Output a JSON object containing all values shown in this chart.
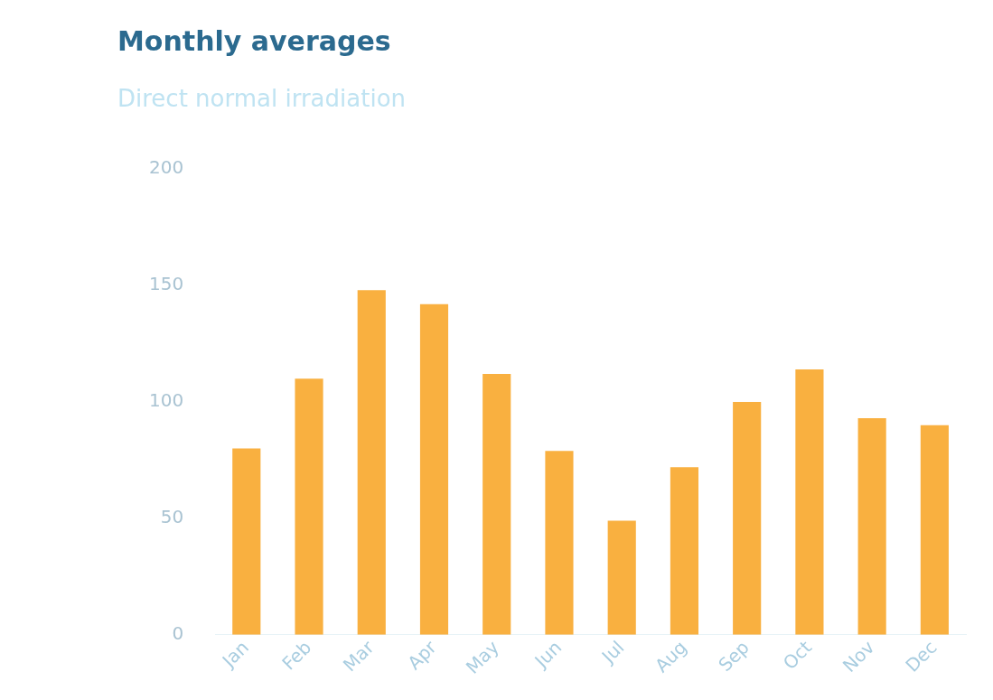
{
  "chart_data": {
    "type": "bar",
    "title": "Monthly averages",
    "subtitle": "Direct normal irradiation",
    "categories": [
      "Jan",
      "Feb",
      "Mar",
      "Apr",
      "May",
      "Jun",
      "Jul",
      "Aug",
      "Sep",
      "Oct",
      "Nov",
      "Dec"
    ],
    "values": [
      80,
      110,
      148,
      142,
      112,
      79,
      49,
      72,
      100,
      114,
      93,
      90
    ],
    "color": "#f9b040",
    "ylim": [
      0,
      200
    ],
    "yticks": [
      0,
      50,
      100,
      150,
      200
    ],
    "grid": false,
    "legend": false
  }
}
